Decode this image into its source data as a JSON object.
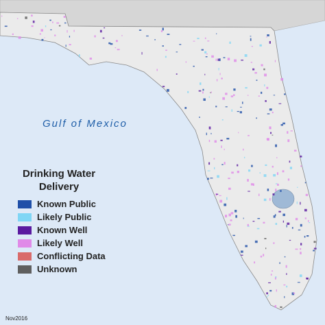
{
  "map": {
    "sea_label": "Gulf of Mexico",
    "date": "Nov2016"
  },
  "legend": {
    "title": "Drinking Water Delivery",
    "items": [
      {
        "label": "Known Public",
        "color": "#1f4fa8"
      },
      {
        "label": "Likely Public",
        "color": "#7fd6f5"
      },
      {
        "label": "Known Well",
        "color": "#5a1aa0"
      },
      {
        "label": "Likely Well",
        "color": "#e08ae8"
      },
      {
        "label": "Conflicting Data",
        "color": "#d96b6b"
      },
      {
        "label": "Unknown",
        "color": "#5f5f5f"
      }
    ]
  }
}
